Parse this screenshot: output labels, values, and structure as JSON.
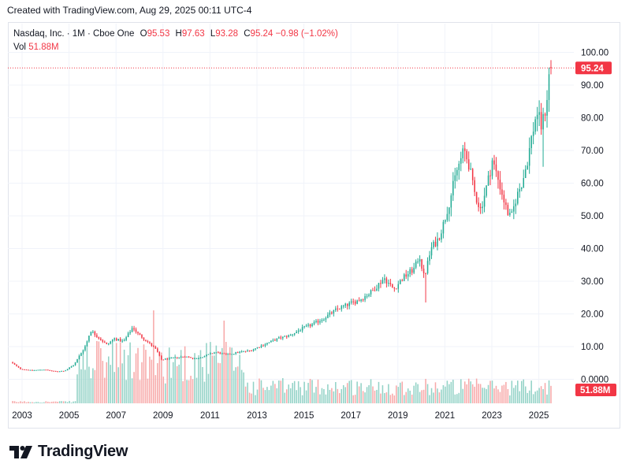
{
  "header": {
    "created": "Created with TradingView.com, Aug 29, 2025 00:11 UTC-4"
  },
  "legend": {
    "symbol": "Nasdaq, Inc. · 1M · Cboe One",
    "o_label": "O",
    "o_value": "95.53",
    "h_label": "H",
    "h_value": "97.63",
    "l_label": "L",
    "l_value": "93.28",
    "c_label": "C",
    "c_value": "95.24",
    "change": "−0.98 (−1.02%)",
    "vol_label": "Vol",
    "vol_value": "51.88M"
  },
  "price_badge": "95.24",
  "volume_badge": "51.88M",
  "brand": {
    "wordmark": "TradingView"
  },
  "colors": {
    "up": "#22ab94",
    "down": "#f23645",
    "up_volume": "#92d2c6",
    "down_volume": "#f7a9a9",
    "grid": "#f0f3fa"
  },
  "chart_data": {
    "type": "candlestick",
    "interval": "1M",
    "y_axis": {
      "ticks": [
        "100.00",
        "90.00",
        "80.00",
        "70.00",
        "60.00",
        "50.00",
        "40.00",
        "30.00",
        "20.00",
        "10.00",
        "0.0000"
      ],
      "min": 0,
      "max": 100
    },
    "x_axis": {
      "ticks": [
        "2003",
        "2005",
        "2007",
        "2009",
        "2011",
        "2013",
        "2015",
        "2017",
        "2019",
        "2021",
        "2023",
        "2025"
      ],
      "range": [
        2002.6,
        2025.7
      ]
    },
    "price_path": [
      [
        2002.6,
        5.3
      ],
      [
        2003.0,
        3.2
      ],
      [
        2003.5,
        2.7
      ],
      [
        2004.0,
        3.0
      ],
      [
        2004.5,
        2.4
      ],
      [
        2004.9,
        2.6
      ],
      [
        2005.3,
        4.5
      ],
      [
        2005.8,
        10.5
      ],
      [
        2006.0,
        15.0
      ],
      [
        2006.3,
        13.0
      ],
      [
        2006.7,
        10.5
      ],
      [
        2007.0,
        12.5
      ],
      [
        2007.4,
        11.5
      ],
      [
        2007.8,
        16.0
      ],
      [
        2008.0,
        14.0
      ],
      [
        2008.5,
        11.0
      ],
      [
        2008.8,
        9.0
      ],
      [
        2009.0,
        6.0
      ],
      [
        2009.5,
        6.5
      ],
      [
        2010.0,
        7.0
      ],
      [
        2010.5,
        6.3
      ],
      [
        2011.0,
        7.5
      ],
      [
        2011.3,
        8.3
      ],
      [
        2011.8,
        7.5
      ],
      [
        2012.3,
        8.3
      ],
      [
        2012.8,
        8.8
      ],
      [
        2013.5,
        11.0
      ],
      [
        2014.0,
        12.5
      ],
      [
        2014.5,
        13.5
      ],
      [
        2015.0,
        15.5
      ],
      [
        2015.5,
        17.0
      ],
      [
        2016.0,
        19.0
      ],
      [
        2016.5,
        21.5
      ],
      [
        2017.0,
        23.0
      ],
      [
        2017.5,
        24.5
      ],
      [
        2018.0,
        27.0
      ],
      [
        2018.5,
        31.0
      ],
      [
        2018.9,
        27.5
      ],
      [
        2019.3,
        31.0
      ],
      [
        2019.8,
        34.0
      ],
      [
        2020.0,
        38.0
      ],
      [
        2020.2,
        31.0
      ],
      [
        2020.5,
        40.0
      ],
      [
        2020.8,
        43.0
      ],
      [
        2021.0,
        47.0
      ],
      [
        2021.3,
        55.0
      ],
      [
        2021.6,
        64.0
      ],
      [
        2021.9,
        70.0
      ],
      [
        2022.1,
        66.0
      ],
      [
        2022.3,
        58.0
      ],
      [
        2022.6,
        52.0
      ],
      [
        2022.9,
        60.0
      ],
      [
        2023.1,
        67.0
      ],
      [
        2023.4,
        60.0
      ],
      [
        2023.7,
        52.0
      ],
      [
        2023.9,
        49.0
      ],
      [
        2024.1,
        55.0
      ],
      [
        2024.4,
        61.0
      ],
      [
        2024.6,
        67.0
      ],
      [
        2024.8,
        75.0
      ],
      [
        2025.0,
        82.0
      ],
      [
        2025.2,
        77.0
      ],
      [
        2025.4,
        84.0
      ],
      [
        2025.55,
        95.24
      ]
    ],
    "last_candle": {
      "open": 95.53,
      "high": 97.63,
      "low": 93.28,
      "close": 95.24,
      "volume": "51.88M"
    },
    "grid": true
  }
}
